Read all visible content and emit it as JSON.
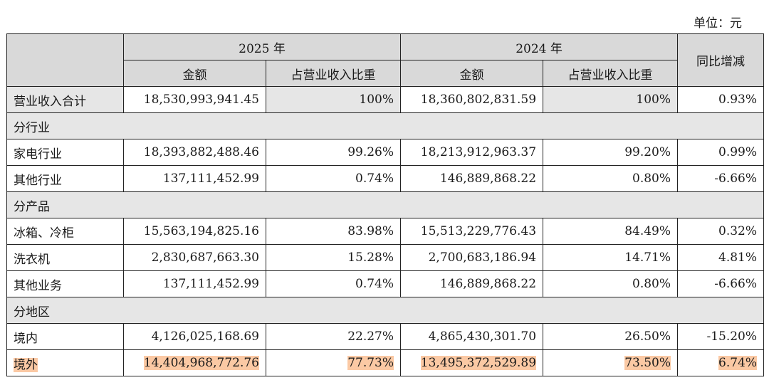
{
  "unit_label": "单位：元",
  "header": {
    "year_2025": "2025 年",
    "year_2024": "2024 年",
    "amount": "金额",
    "share": "占营业收入比重",
    "yoy": "同比增减"
  },
  "total": {
    "label": "营业收入合计",
    "amount_2025": "18,530,993,941.45",
    "share_2025": "100%",
    "amount_2024": "18,360,802,831.59",
    "share_2024": "100%",
    "yoy": "0.93%"
  },
  "sections": [
    {
      "title": "分行业",
      "rows": [
        {
          "label": "家电行业",
          "amount_2025": "18,393,882,488.46",
          "share_2025": "99.26%",
          "amount_2024": "18,213,912,963.37",
          "share_2024": "99.20%",
          "yoy": "0.99%"
        },
        {
          "label": "其他行业",
          "amount_2025": "137,111,452.99",
          "share_2025": "0.74%",
          "amount_2024": "146,889,868.22",
          "share_2024": "0.80%",
          "yoy": "-6.66%"
        }
      ]
    },
    {
      "title": "分产品",
      "rows": [
        {
          "label": "冰箱、冷柜",
          "amount_2025": "15,563,194,825.16",
          "share_2025": "83.98%",
          "amount_2024": "15,513,229,776.43",
          "share_2024": "84.49%",
          "yoy": "0.32%"
        },
        {
          "label": "洗衣机",
          "amount_2025": "2,830,687,663.30",
          "share_2025": "15.28%",
          "amount_2024": "2,700,683,186.94",
          "share_2024": "14.71%",
          "yoy": "4.81%"
        },
        {
          "label": "其他业务",
          "amount_2025": "137,111,452.99",
          "share_2025": "0.74%",
          "amount_2024": "146,889,868.22",
          "share_2024": "0.80%",
          "yoy": "-6.66%"
        }
      ]
    },
    {
      "title": "分地区",
      "rows": [
        {
          "label": "境内",
          "amount_2025": "4,126,025,168.69",
          "share_2025": "22.27%",
          "amount_2024": "4,865,430,301.70",
          "share_2024": "26.50%",
          "yoy": "-15.20%"
        },
        {
          "label": "境外",
          "amount_2025": "14,404,968,772.76",
          "share_2025": "77.73%",
          "amount_2024": "13,495,372,529.89",
          "share_2024": "73.50%",
          "yoy": "6.74%",
          "highlight": true
        }
      ]
    }
  ],
  "colors": {
    "header_bg": "#d9d9d9",
    "section_bg": "#e6e6e6",
    "highlight": "#fbc9a4"
  }
}
